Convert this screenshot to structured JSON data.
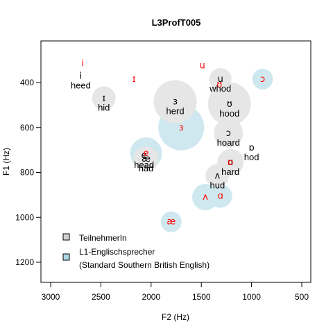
{
  "chart_data": {
    "type": "scatter",
    "title": "L3ProfT005",
    "xlabel": "F2 (Hz)",
    "ylabel": "F1 (Hz)",
    "x_reversed": true,
    "y_reversed": true,
    "xlim": [
      3000,
      500
    ],
    "ylim": [
      1300,
      230
    ],
    "xticks": [
      "3000",
      "2500",
      "2000",
      "1500",
      "1000",
      "500"
    ],
    "yticks": [
      "400",
      "600",
      "800",
      "1000",
      "1200"
    ],
    "xtick_values": [
      3000,
      2500,
      2000,
      1500,
      1000,
      500
    ],
    "ytick_values": [
      400,
      600,
      800,
      1000,
      1200
    ],
    "colors": {
      "learner_circle": "#e6e6e6",
      "native_circle": "#cfe8ef",
      "learner_symbol": "#000000",
      "native_symbol": "#ff0000",
      "legend_learner_box": "#d3d3d3",
      "legend_native_box": "#add8e6"
    },
    "series": [
      {
        "name": "TeilnehmerIn",
        "points": [
          {
            "symbol": "i",
            "word": "heed",
            "x": 2700,
            "y": 370,
            "spread": 0
          },
          {
            "symbol": "ɪ",
            "word": "hid",
            "x": 2470,
            "y": 470,
            "spread": 8
          },
          {
            "symbol": "ɜ",
            "word": "herd",
            "x": 1760,
            "y": 485,
            "spread": 22
          },
          {
            "symbol": "u",
            "word": "whod",
            "x": 1310,
            "y": 385,
            "spread": 7
          },
          {
            "symbol": "ʊ",
            "word": "hood",
            "x": 1220,
            "y": 495,
            "spread": 22
          },
          {
            "symbol": "ɔ",
            "word": "hoard",
            "x": 1230,
            "y": 625,
            "spread": 12
          },
          {
            "symbol": "ɒ",
            "word": "hod",
            "x": 1000,
            "y": 690,
            "spread": 0
          },
          {
            "symbol": "æ",
            "word": "had",
            "x": 2050,
            "y": 740,
            "spread": 9
          },
          {
            "symbol": "e",
            "word": "head",
            "x": 2070,
            "y": 725,
            "spread": 0
          },
          {
            "symbol": "ɑ",
            "word": "hard",
            "x": 1210,
            "y": 755,
            "spread": 10
          },
          {
            "symbol": "ʌ",
            "word": "hud",
            "x": 1340,
            "y": 815,
            "spread": 8
          }
        ]
      },
      {
        "name": "L1-Englischsprecher (Standard Southern British English)",
        "points": [
          {
            "symbol": "i",
            "x": 2680,
            "y": 315,
            "spread": 0
          },
          {
            "symbol": "ɪ",
            "x": 2170,
            "y": 385,
            "spread": 0
          },
          {
            "symbol": "u",
            "x": 1490,
            "y": 325,
            "spread": 0
          },
          {
            "symbol": "ʊ",
            "x": 1320,
            "y": 410,
            "spread": 0
          },
          {
            "symbol": "ɔ",
            "x": 890,
            "y": 385,
            "spread": 6
          },
          {
            "symbol": "ɜ",
            "x": 1700,
            "y": 600,
            "spread": 24
          },
          {
            "symbol": "e",
            "x": 2050,
            "y": 715,
            "spread": 14
          },
          {
            "symbol": "ɒ",
            "x": 1210,
            "y": 755,
            "spread": 7
          },
          {
            "symbol": "ʌ",
            "x": 1460,
            "y": 910,
            "spread": 10
          },
          {
            "symbol": "ɑ",
            "x": 1310,
            "y": 905,
            "spread": 8
          },
          {
            "symbol": "æ",
            "x": 1800,
            "y": 1020,
            "spread": 6
          }
        ]
      }
    ],
    "legend": {
      "position": "bottom-left",
      "entries": [
        {
          "lines": [
            "TeilnehmerIn"
          ]
        },
        {
          "lines": [
            "L1-Englischsprecher",
            "(Standard Southern British English)"
          ]
        }
      ]
    },
    "grid": false
  }
}
